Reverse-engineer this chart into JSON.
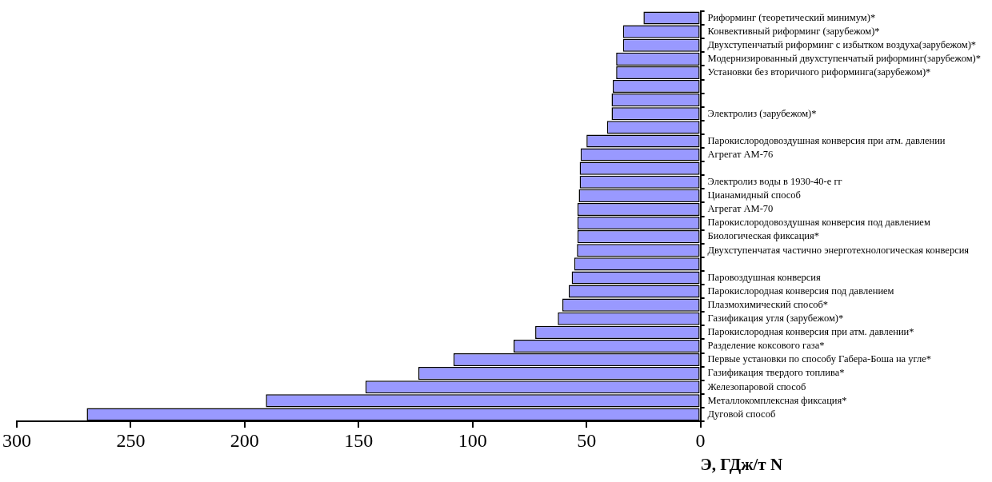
{
  "chart_data": {
    "type": "bar",
    "orientation": "horizontal",
    "xlabel": "Э, ГДж/т N",
    "categories": [
      "Риформинг (теоретический минимум)*",
      "Конвективный риформинг (зарубежом)*",
      "Двухступенчатый риформинг с избытком воздуха(зарубежом)*",
      "Модернизированный двухступенчатый риформинг(зарубежом)*",
      "Установки без вторичного риформинга(зарубежом)*",
      null,
      null,
      "Электролиз (зарубежом)*",
      null,
      "Парокислородовоздушная конверсия при атм. давлении",
      "Агрегат АМ-76",
      null,
      "Электролиз воды в 1930-40-е гг",
      "Цианамидный способ",
      "Агрегат АМ-70",
      "Парокислородовоздушная конверсия под давлением",
      "Биологическая фиксация*",
      "Двухступенчатая частично энерготехнологическая конверсия",
      null,
      "Паровоздушная конверсия",
      "Парокислородная конверсия под давлением",
      "Плазмохимический способ*",
      "Газификация угля (зарубежом)*",
      "Парокислородная конверсия при атм. давлении*",
      "Разделение коксового газа*",
      "Первые установки по способу Габера-Боша на угле*",
      "Газификация твердого топлива*",
      "Железопаровой способ",
      "Металлокомплексная фиксация*",
      "Дуговой способ"
    ],
    "values": [
      25,
      34,
      34,
      37,
      37,
      38.5,
      39,
      39,
      41,
      50,
      52.6,
      53,
      53,
      53.4,
      54,
      54,
      54,
      54.2,
      55.4,
      56.5,
      57.8,
      60.6,
      62.6,
      72.5,
      82,
      108.4,
      123.8,
      147,
      190.7,
      269.3
    ],
    "color": "#9999ff",
    "xlim": [
      300,
      0
    ],
    "xticks": [
      300,
      250,
      200,
      150,
      100,
      50,
      0
    ],
    "grid": false,
    "legend": false
  }
}
